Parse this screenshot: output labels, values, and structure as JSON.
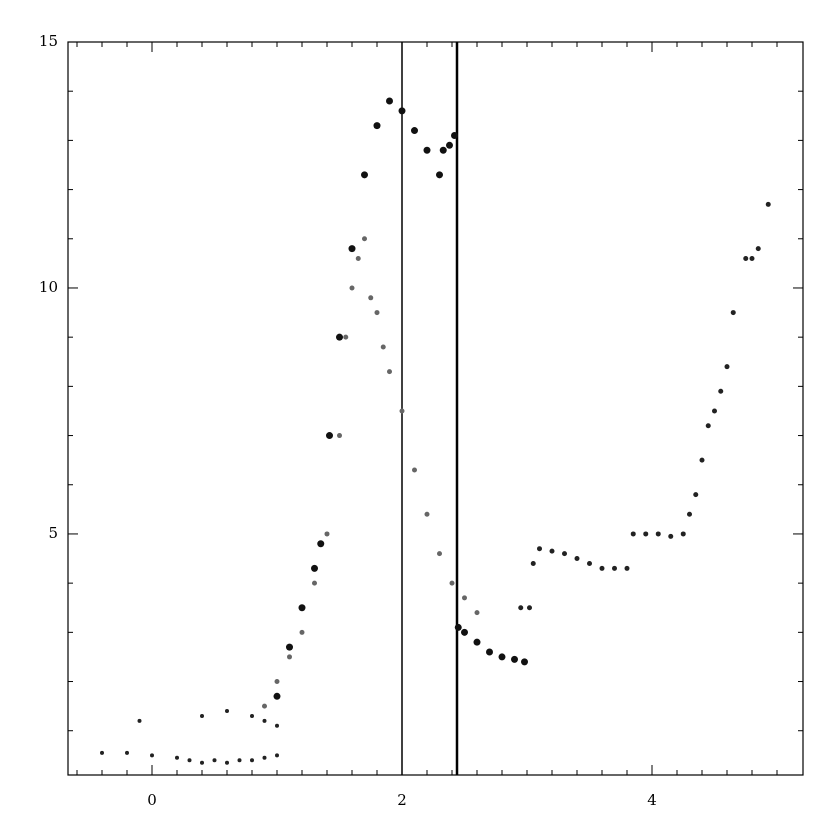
{
  "chart_data": {
    "type": "scatter",
    "xlim": [
      -0.672,
      5.208
    ],
    "ylim": [
      0.1,
      15
    ],
    "xticks": [
      0,
      2,
      4
    ],
    "yticks": [
      5,
      10,
      15
    ],
    "xminorticks": [
      -0.6,
      -0.4,
      -0.2,
      0.2,
      0.4,
      0.6,
      0.8,
      1,
      1.2,
      1.4,
      1.6,
      1.8,
      2.2,
      2.4,
      2.6,
      2.8,
      3,
      3.2,
      3.4,
      3.6,
      3.8,
      4.2,
      4.4,
      4.6,
      4.8,
      5
    ],
    "yminorticks": [
      1,
      2,
      3,
      4,
      6,
      7,
      8,
      9,
      11,
      12,
      13,
      14
    ],
    "vlines": [
      2,
      2.44
    ],
    "series": [
      {
        "color": "#111111",
        "marker_size": 3.5,
        "x": [
          1.0,
          1.1,
          1.2,
          1.3,
          1.35,
          1.42,
          1.5,
          1.6,
          1.7,
          1.8,
          1.9,
          2.0,
          2.1,
          2.2,
          2.3,
          2.33,
          2.38,
          2.42,
          2.45,
          2.5,
          2.6,
          2.7,
          2.8,
          2.9,
          2.98
        ],
        "y": [
          1.7,
          2.7,
          3.5,
          4.3,
          4.8,
          7.0,
          9.0,
          10.8,
          12.3,
          13.3,
          13.8,
          13.6,
          13.2,
          12.8,
          12.3,
          12.8,
          12.9,
          13.1,
          3.1,
          3.0,
          2.8,
          2.6,
          2.5,
          2.45,
          2.4
        ]
      },
      {
        "color": "#666666",
        "marker_size": 2.5,
        "x": [
          0.9,
          1.0,
          1.1,
          1.2,
          1.3,
          1.4,
          1.5,
          1.55,
          1.6,
          1.65,
          1.7,
          1.75,
          1.8,
          1.85,
          1.9,
          2.0,
          2.1,
          2.2,
          2.3,
          2.4,
          2.5,
          2.6
        ],
        "y": [
          1.5,
          2.0,
          2.5,
          3.0,
          4.0,
          5.0,
          7.0,
          9.0,
          10.0,
          10.6,
          11.0,
          9.8,
          9.5,
          8.8,
          8.3,
          7.5,
          6.3,
          5.4,
          4.6,
          4.0,
          3.7,
          3.4
        ]
      },
      {
        "color": "#222222",
        "marker_size": 2,
        "x": [
          -0.4,
          -0.2,
          0.0,
          0.2,
          0.3,
          0.4,
          0.5,
          0.6,
          0.7,
          0.8,
          0.9,
          1.0,
          -0.1,
          0.4,
          0.6,
          0.8,
          0.9,
          1.0
        ],
        "y": [
          0.55,
          0.55,
          0.5,
          0.45,
          0.4,
          0.35,
          0.4,
          0.35,
          0.4,
          0.4,
          0.45,
          0.5,
          1.2,
          1.3,
          1.4,
          1.3,
          1.2,
          1.1
        ]
      },
      {
        "color": "#222222",
        "marker_size": 2.5,
        "x": [
          2.95,
          3.02,
          3.05,
          3.1,
          3.2,
          3.3,
          3.4,
          3.5,
          3.6,
          3.7,
          3.8,
          3.85,
          3.95,
          4.05,
          4.15,
          4.25,
          4.3,
          4.35,
          4.4,
          4.45,
          4.5,
          4.55,
          4.6,
          4.65,
          4.75,
          4.8,
          4.85,
          4.93
        ],
        "y": [
          3.5,
          3.5,
          4.4,
          4.7,
          4.65,
          4.6,
          4.5,
          4.4,
          4.3,
          4.3,
          4.3,
          5.0,
          5.0,
          5.0,
          4.95,
          5.0,
          5.4,
          5.8,
          6.5,
          7.2,
          7.5,
          7.9,
          8.4,
          9.5,
          10.6,
          10.6,
          10.8,
          11.7
        ]
      }
    ]
  }
}
